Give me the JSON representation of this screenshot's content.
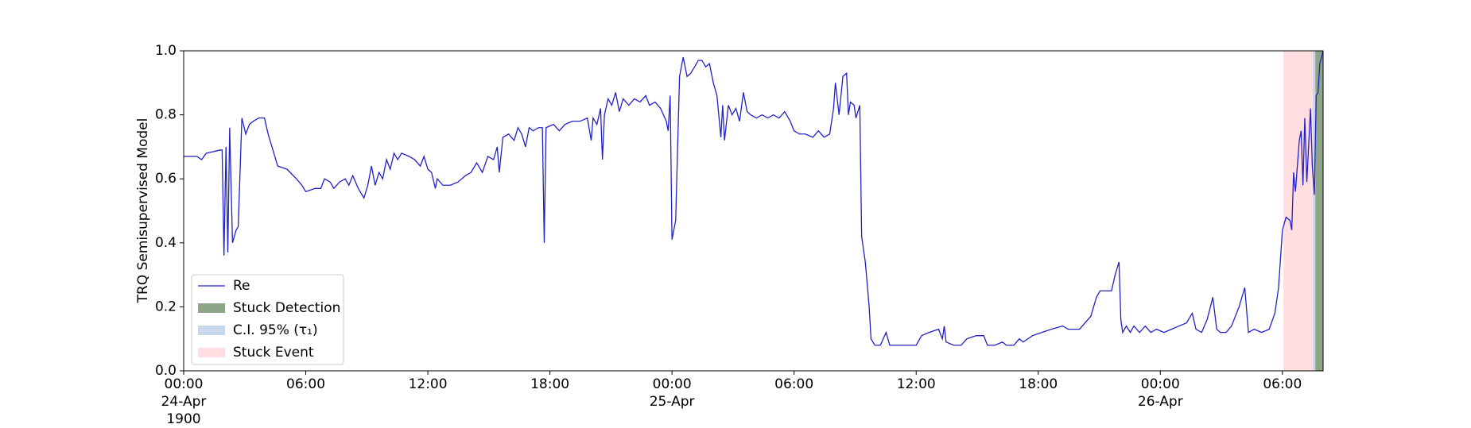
{
  "chart_data": {
    "type": "line",
    "ylabel": "TRQ Semisupervised Model",
    "x": [
      0,
      0.65,
      0.88,
      1.11,
      1.8,
      1.89,
      1.98,
      2.08,
      2.17,
      2.26,
      2.4,
      2.58,
      2.68,
      2.86,
      3.05,
      3.23,
      3.42,
      3.69,
      3.97,
      4.15,
      4.34,
      4.62,
      5.08,
      5.54,
      5.81,
      6,
      6.46,
      6.74,
      6.92,
      7.2,
      7.38,
      7.66,
      7.94,
      8.12,
      8.31,
      8.58,
      8.86,
      9.05,
      9.23,
      9.41,
      9.6,
      9.78,
      9.97,
      10.15,
      10.34,
      10.52,
      10.71,
      11.08,
      11.35,
      11.63,
      11.81,
      12,
      12.18,
      12.37,
      12.46,
      12.74,
      13.11,
      13.48,
      13.85,
      14.12,
      14.4,
      14.68,
      14.95,
      15.23,
      15.41,
      15.51,
      15.69,
      15.97,
      16.24,
      16.43,
      16.61,
      16.8,
      16.98,
      17.17,
      17.44,
      17.63,
      17.72,
      17.81,
      18.18,
      18.46,
      18.74,
      19.11,
      19.48,
      19.84,
      20.03,
      20.12,
      20.31,
      20.49,
      20.58,
      20.68,
      20.86,
      21.04,
      21.23,
      21.41,
      21.6,
      21.88,
      22.15,
      22.43,
      22.71,
      22.89,
      23.17,
      23.44,
      23.72,
      23.81,
      23.91,
      24,
      24.18,
      24.37,
      24.55,
      24.74,
      24.92,
      25.11,
      25.29,
      25.47,
      25.66,
      25.84,
      26.03,
      26.21,
      26.4,
      26.49,
      26.58,
      26.77,
      26.95,
      27.14,
      27.32,
      27.51,
      27.69,
      27.87,
      28.15,
      28.43,
      28.71,
      28.98,
      29.26,
      29.54,
      29.81,
      30,
      30.27,
      30.55,
      30.92,
      31.2,
      31.47,
      31.75,
      31.94,
      32.03,
      32.21,
      32.4,
      32.58,
      32.67,
      32.77,
      32.95,
      33.04,
      33.23,
      33.32,
      33.5,
      33.69,
      33.78,
      33.97,
      34.24,
      34.52,
      34.7,
      34.98,
      35.26,
      35.63,
      36,
      36.27,
      36.64,
      37.1,
      37.29,
      37.38,
      37.47,
      37.84,
      38.21,
      38.49,
      38.95,
      39.32,
      39.5,
      39.87,
      40.24,
      40.43,
      40.8,
      41.07,
      41.26,
      41.72,
      42.18,
      42.64,
      43.2,
      43.47,
      44.03,
      44.3,
      44.58,
      44.86,
      45.04,
      45.32,
      45.6,
      45.78,
      45.97,
      46.06,
      46.15,
      46.33,
      46.52,
      46.7,
      46.98,
      47.26,
      47.53,
      47.81,
      48.18,
      48.55,
      48.92,
      49.29,
      49.57,
      49.75,
      50.03,
      50.3,
      50.58,
      50.77,
      50.95,
      51.23,
      51.5,
      51.87,
      52.15,
      52.33,
      52.61,
      52.98,
      53.35,
      53.63,
      53.81,
      54,
      54.18,
      54.37,
      54.46,
      54.55,
      54.64,
      54.83,
      54.92,
      55.01,
      55.1,
      55.2,
      55.38,
      55.47,
      55.57,
      55.66,
      55.75,
      55.84,
      56
    ],
    "series": [
      {
        "name": "Re",
        "color": "#2121c8",
        "values": [
          0.67,
          0.67,
          0.66,
          0.68,
          0.69,
          0.69,
          0.36,
          0.7,
          0.37,
          0.76,
          0.4,
          0.44,
          0.45,
          0.79,
          0.74,
          0.77,
          0.78,
          0.79,
          0.79,
          0.74,
          0.7,
          0.64,
          0.63,
          0.6,
          0.58,
          0.56,
          0.57,
          0.57,
          0.6,
          0.59,
          0.57,
          0.59,
          0.6,
          0.58,
          0.61,
          0.57,
          0.54,
          0.58,
          0.64,
          0.58,
          0.62,
          0.6,
          0.66,
          0.63,
          0.68,
          0.66,
          0.68,
          0.67,
          0.66,
          0.64,
          0.67,
          0.63,
          0.62,
          0.57,
          0.6,
          0.58,
          0.58,
          0.59,
          0.61,
          0.62,
          0.65,
          0.62,
          0.67,
          0.66,
          0.7,
          0.62,
          0.73,
          0.74,
          0.72,
          0.76,
          0.74,
          0.7,
          0.76,
          0.75,
          0.76,
          0.76,
          0.4,
          0.76,
          0.77,
          0.75,
          0.77,
          0.78,
          0.78,
          0.79,
          0.72,
          0.79,
          0.77,
          0.82,
          0.66,
          0.8,
          0.85,
          0.83,
          0.87,
          0.81,
          0.85,
          0.83,
          0.85,
          0.84,
          0.86,
          0.83,
          0.84,
          0.82,
          0.78,
          0.75,
          0.86,
          0.41,
          0.47,
          0.92,
          0.98,
          0.92,
          0.93,
          0.95,
          0.97,
          0.97,
          0.95,
          0.96,
          0.9,
          0.86,
          0.73,
          0.83,
          0.72,
          0.83,
          0.8,
          0.82,
          0.78,
          0.87,
          0.81,
          0.8,
          0.79,
          0.8,
          0.79,
          0.8,
          0.79,
          0.81,
          0.78,
          0.75,
          0.74,
          0.74,
          0.73,
          0.75,
          0.73,
          0.74,
          0.82,
          0.9,
          0.8,
          0.92,
          0.93,
          0.8,
          0.84,
          0.83,
          0.79,
          0.83,
          0.42,
          0.34,
          0.2,
          0.1,
          0.08,
          0.08,
          0.12,
          0.08,
          0.08,
          0.08,
          0.08,
          0.08,
          0.11,
          0.12,
          0.13,
          0.1,
          0.14,
          0.09,
          0.08,
          0.08,
          0.1,
          0.11,
          0.11,
          0.08,
          0.08,
          0.09,
          0.08,
          0.08,
          0.1,
          0.09,
          0.11,
          0.12,
          0.13,
          0.14,
          0.13,
          0.13,
          0.15,
          0.17,
          0.23,
          0.25,
          0.25,
          0.25,
          0.3,
          0.34,
          0.16,
          0.12,
          0.14,
          0.12,
          0.14,
          0.12,
          0.14,
          0.12,
          0.13,
          0.12,
          0.13,
          0.14,
          0.15,
          0.18,
          0.13,
          0.12,
          0.16,
          0.23,
          0.13,
          0.12,
          0.12,
          0.14,
          0.2,
          0.26,
          0.12,
          0.13,
          0.12,
          0.13,
          0.18,
          0.26,
          0.44,
          0.48,
          0.47,
          0.44,
          0.62,
          0.56,
          0.72,
          0.75,
          0.58,
          0.79,
          0.59,
          0.82,
          0.64,
          0.55,
          0.86,
          0.87,
          0.96,
          1.0
        ]
      }
    ],
    "spans": [
      {
        "name": "Stuck Event",
        "color": "#ffdde1",
        "x": [
          54.05,
          56
        ]
      },
      {
        "name": "C.I. 95% (τ₁)",
        "color": "#c7d8ec",
        "x": [
          55.5,
          55.62
        ]
      },
      {
        "name": "Stuck Detection",
        "color": "#8ea587",
        "x": [
          55.62,
          56
        ]
      }
    ],
    "legend_order": [
      "series.0",
      "spans.2",
      "spans.1",
      "spans.0"
    ],
    "legend": "lower left",
    "xlim": [
      0,
      56
    ],
    "xticks": [
      {
        "value": 0,
        "label": "00:00\n24-Apr\n1900"
      },
      {
        "value": 6,
        "label": "06:00"
      },
      {
        "value": 12,
        "label": "12:00"
      },
      {
        "value": 18,
        "label": "18:00"
      },
      {
        "value": 24,
        "label": "00:00\n25-Apr"
      },
      {
        "value": 30,
        "label": "06:00"
      },
      {
        "value": 36,
        "label": "12:00"
      },
      {
        "value": 42,
        "label": "18:00"
      },
      {
        "value": 48,
        "label": "00:00\n26-Apr"
      },
      {
        "value": 54,
        "label": "06:00"
      }
    ],
    "ylim": [
      0,
      1
    ],
    "yticks": [
      {
        "value": 0,
        "label": "0.0"
      },
      {
        "value": 0.2,
        "label": "0.2"
      },
      {
        "value": 0.4,
        "label": "0.4"
      },
      {
        "value": 0.6,
        "label": "0.6"
      },
      {
        "value": 0.8,
        "label": "0.8"
      },
      {
        "value": 1,
        "label": "1.0"
      }
    ],
    "grid": false
  }
}
